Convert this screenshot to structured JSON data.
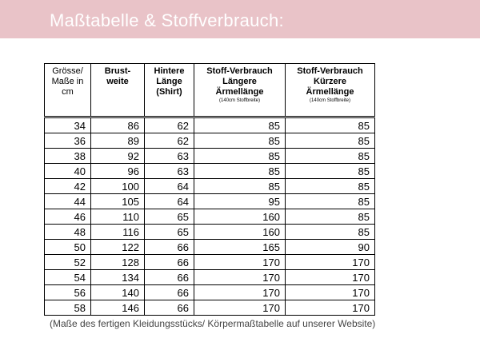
{
  "header": {
    "title": "Maßtabelle & Stoffverbrauch:"
  },
  "table": {
    "columns": [
      {
        "lines": [
          "Grösse/",
          "Maße in",
          "cm"
        ]
      },
      {
        "lines": [
          "Brust-",
          "weite"
        ]
      },
      {
        "lines": [
          "Hintere",
          "Länge",
          "(Shirt)"
        ]
      },
      {
        "lines": [
          "Stoff-Verbrauch",
          "Längere",
          "Ärmellänge"
        ],
        "note": "(140cm Stoffbreite)"
      },
      {
        "lines": [
          "Stoff-Verbrauch",
          "Kürzere",
          "Ärmellänge"
        ],
        "note": "(140cm Stoffbreite)"
      }
    ],
    "rows": [
      [
        34,
        86,
        62,
        85,
        85
      ],
      [
        36,
        89,
        62,
        85,
        85
      ],
      [
        38,
        92,
        63,
        85,
        85
      ],
      [
        40,
        96,
        63,
        85,
        85
      ],
      [
        42,
        100,
        64,
        85,
        85
      ],
      [
        44,
        105,
        64,
        95,
        85
      ],
      [
        46,
        110,
        65,
        160,
        85
      ],
      [
        48,
        116,
        65,
        160,
        85
      ],
      [
        50,
        122,
        66,
        165,
        90
      ],
      [
        52,
        128,
        66,
        170,
        170
      ],
      [
        54,
        134,
        66,
        170,
        170
      ],
      [
        56,
        140,
        66,
        170,
        170
      ],
      [
        58,
        146,
        66,
        170,
        170
      ]
    ]
  },
  "footnote": "(Maße des fertigen Kleidungsstücks/ Körpermaßtabelle auf unserer Website)"
}
